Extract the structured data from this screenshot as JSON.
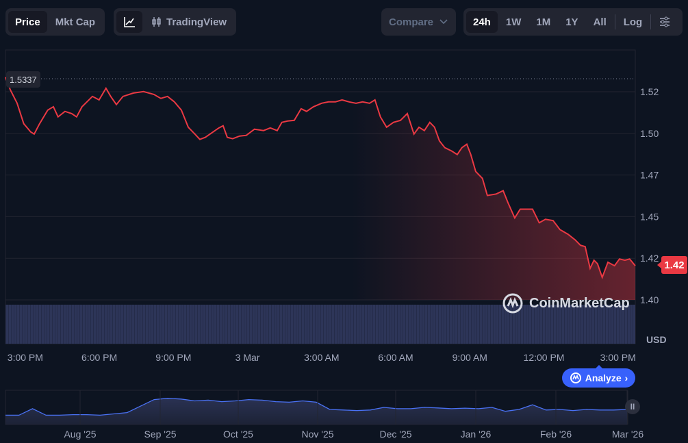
{
  "toolbar": {
    "type_tabs": [
      {
        "label": "Price",
        "active": true
      },
      {
        "label": "Mkt Cap",
        "active": false
      }
    ],
    "view_icons": {
      "line": "line-chart-icon",
      "candle": "candlestick-icon"
    },
    "tradingview_label": "TradingView",
    "compare_label": "Compare",
    "ranges": [
      {
        "label": "24h",
        "active": true
      },
      {
        "label": "1W"
      },
      {
        "label": "1M"
      },
      {
        "label": "1Y"
      },
      {
        "label": "All"
      }
    ],
    "log_label": "Log",
    "settings_icon": "sliders-icon"
  },
  "colors": {
    "line": "#ea3943",
    "accent": "#3861fb",
    "volume": "#2d3558",
    "nav_line": "#4a72f5"
  },
  "current_price_label": "1.42",
  "start_price_label": "1.5337",
  "currency_label": "USD",
  "watermark": "CoinMarketCap",
  "analyze_label": "Analyze",
  "chart_data": {
    "type": "line",
    "title": "",
    "xlabel": "",
    "ylabel": "USD",
    "x_unit": "hours since 3:00 PM",
    "xlim": [
      -0.8,
      24.7
    ],
    "ylim": [
      1.3925,
      1.545
    ],
    "yticks": [
      1.525,
      1.5,
      1.475,
      1.45,
      1.425,
      1.4
    ],
    "ytick_labels": [
      "1.52",
      "1.50",
      "1.47",
      "1.45",
      "1.42",
      "1.40"
    ],
    "xticks": [
      0,
      3,
      6,
      9,
      12,
      15,
      18,
      21,
      24
    ],
    "xtick_labels": [
      "3:00 PM",
      "6:00 PM",
      "9:00 PM",
      "3 Mar",
      "3:00 AM",
      "6:00 AM",
      "9:00 AM",
      "12:00 PM",
      "3:00 PM"
    ],
    "grid": true,
    "start_price": 1.5337,
    "series": [
      {
        "name": "Price",
        "x": [
          -0.8,
          -0.61,
          -0.33,
          -0.06,
          0.22,
          0.36,
          0.58,
          0.91,
          1.14,
          1.33,
          1.61,
          1.88,
          2.08,
          2.3,
          2.72,
          2.99,
          3.27,
          3.46,
          3.69,
          3.96,
          4.38,
          4.79,
          5.21,
          5.49,
          5.76,
          6.04,
          6.32,
          6.6,
          6.87,
          7.07,
          7.29,
          7.57,
          7.84,
          8.01,
          8.18,
          8.4,
          8.68,
          8.95,
          9.28,
          9.65,
          9.92,
          10.2,
          10.39,
          10.62,
          10.89,
          11.17,
          11.39,
          11.67,
          12.0,
          12.28,
          12.56,
          12.83,
          13.11,
          13.39,
          13.66,
          13.94,
          14.16,
          14.38,
          14.63,
          14.91,
          15.19,
          15.47,
          15.74,
          15.94,
          16.16,
          16.38,
          16.57,
          16.77,
          16.99,
          17.27,
          17.49,
          17.68,
          17.88,
          18.04,
          18.24,
          18.51,
          18.71,
          19.07,
          19.35,
          19.54,
          19.82,
          20.04,
          20.32,
          20.54,
          20.81,
          21.06,
          21.37,
          21.65,
          21.98,
          22.26,
          22.48,
          22.67,
          22.87,
          23.03,
          23.17,
          23.36,
          23.59,
          23.86,
          24.06,
          24.28,
          24.47,
          24.7
        ],
        "y": [
          1.5337,
          1.5263,
          1.5181,
          1.5058,
          1.5009,
          1.4996,
          1.5058,
          1.514,
          1.516,
          1.5099,
          1.5132,
          1.5119,
          1.5099,
          1.516,
          1.5222,
          1.5201,
          1.5271,
          1.5222,
          1.5173,
          1.5222,
          1.5242,
          1.5251,
          1.5234,
          1.521,
          1.5222,
          1.5189,
          1.514,
          1.5037,
          1.4996,
          1.4964,
          1.4976,
          1.5005,
          1.5033,
          1.5046,
          1.4976,
          1.4968,
          1.4984,
          1.4988,
          1.5025,
          1.5017,
          1.5033,
          1.5017,
          1.5066,
          1.5074,
          1.5078,
          1.5148,
          1.5132,
          1.516,
          1.5181,
          1.5189,
          1.5189,
          1.5201,
          1.5189,
          1.5181,
          1.5189,
          1.5181,
          1.5201,
          1.5099,
          1.5037,
          1.5066,
          1.5078,
          1.5119,
          1.4996,
          1.5037,
          1.5017,
          1.5066,
          1.5037,
          1.4955,
          1.4914,
          1.4894,
          1.4873,
          1.4914,
          1.4935,
          1.4873,
          1.4771,
          1.473,
          1.4627,
          1.4636,
          1.4656,
          1.4586,
          1.4492,
          1.4545,
          1.4545,
          1.4545,
          1.4463,
          1.4484,
          1.4476,
          1.4422,
          1.4394,
          1.4361,
          1.4328,
          1.432,
          1.4189,
          1.4238,
          1.4217,
          1.4135,
          1.4226,
          1.4205,
          1.4246,
          1.4238,
          1.4246,
          1.4205
        ]
      }
    ],
    "navigator": {
      "tick_labels": [
        "Aug '25",
        "Sep '25",
        "Oct '25",
        "Nov '25",
        "Dec '25",
        "Jan '26",
        "Feb '26",
        "Mar '26"
      ],
      "values": [
        0.2,
        0.2,
        0.45,
        0.2,
        0.2,
        0.22,
        0.22,
        0.2,
        0.25,
        0.3,
        0.55,
        0.8,
        0.85,
        0.82,
        0.75,
        0.78,
        0.72,
        0.75,
        0.8,
        0.78,
        0.72,
        0.7,
        0.75,
        0.7,
        0.42,
        0.4,
        0.38,
        0.4,
        0.5,
        0.45,
        0.45,
        0.5,
        0.48,
        0.45,
        0.47,
        0.45,
        0.5,
        0.35,
        0.42,
        0.6,
        0.4,
        0.42,
        0.38,
        0.42,
        0.4,
        0.4,
        0.42
      ]
    }
  }
}
